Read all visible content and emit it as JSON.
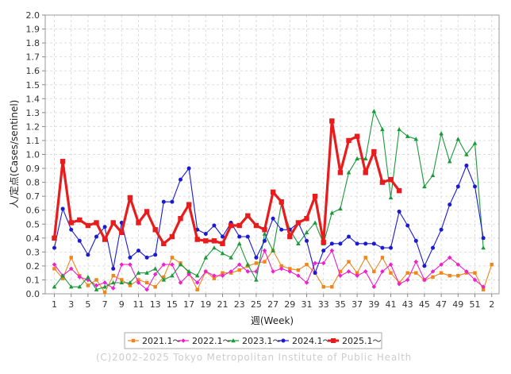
{
  "chart_data": {
    "type": "line",
    "xlabel": "週(Week)",
    "ylabel": "人/定点(Cases/sentinel)",
    "ylim": [
      0,
      2.0
    ],
    "y_ticks": [
      "0.0",
      "0.1",
      "0.2",
      "0.3",
      "0.4",
      "0.5",
      "0.6",
      "0.7",
      "0.8",
      "0.9",
      "1.0",
      "1.1",
      "1.2",
      "1.3",
      "1.4",
      "1.5",
      "1.6",
      "1.7",
      "1.8",
      "1.9",
      "2.0"
    ],
    "x_ticks": [
      "1",
      "3",
      "5",
      "7",
      "9",
      "11",
      "13",
      "15",
      "17",
      "19",
      "21",
      "23",
      "25",
      "27",
      "29",
      "31",
      "33",
      "35",
      "37",
      "39",
      "41",
      "43",
      "45",
      "47",
      "49",
      "51",
      "2"
    ],
    "grid": true,
    "legend_position": "bottom",
    "copyright": "(C)2002-2025 Tokyo Metropolitan Institute of Public Health",
    "series": [
      {
        "name": "2021.1～",
        "color": "#f0851a",
        "marker": "square",
        "values": [
          0.18,
          0.11,
          0.26,
          0.13,
          0.06,
          0.1,
          0.01,
          0.13,
          0.1,
          0.06,
          0.1,
          0.08,
          0.05,
          0.12,
          0.26,
          0.22,
          0.15,
          0.03,
          0.16,
          0.11,
          0.15,
          0.15,
          0.17,
          0.2,
          0.22,
          0.23,
          0.31,
          0.2,
          0.18,
          0.17,
          0.21,
          0.15,
          0.05,
          0.05,
          0.16,
          0.23,
          0.15,
          0.26,
          0.16,
          0.26,
          0.15,
          0.08,
          0.15,
          0.15,
          0.1,
          0.12,
          0.15,
          0.13,
          0.13,
          0.15,
          0.15,
          0.03,
          0.21
        ]
      },
      {
        "name": "2022.1～",
        "color": "#ee22cc",
        "marker": "diamond",
        "values": [
          0.21,
          0.13,
          0.18,
          0.12,
          0.1,
          0.06,
          0.08,
          0.04,
          0.21,
          0.21,
          0.08,
          0.03,
          0.14,
          0.21,
          0.21,
          0.08,
          0.14,
          0.08,
          0.16,
          0.13,
          0.13,
          0.16,
          0.21,
          0.16,
          0.16,
          0.31,
          0.16,
          0.18,
          0.16,
          0.13,
          0.08,
          0.22,
          0.22,
          0.31,
          0.13,
          0.16,
          0.13,
          0.16,
          0.05,
          0.16,
          0.21,
          0.07,
          0.1,
          0.23,
          0.1,
          0.16,
          0.21,
          0.26,
          0.21,
          0.16,
          0.1,
          0.05
        ]
      },
      {
        "name": "2023.1～",
        "color": "#1a9a3a",
        "marker": "triangle",
        "values": [
          0.05,
          0.13,
          0.05,
          0.05,
          0.12,
          0.03,
          0.05,
          0.08,
          0.08,
          0.08,
          0.15,
          0.15,
          0.18,
          0.1,
          0.13,
          0.21,
          0.16,
          0.13,
          0.26,
          0.33,
          0.29,
          0.26,
          0.36,
          0.21,
          0.1,
          0.43,
          0.31,
          0.65,
          0.46,
          0.36,
          0.44,
          0.51,
          0.36,
          0.58,
          0.61,
          0.87,
          0.97,
          0.97,
          1.31,
          1.18,
          0.69,
          1.18,
          1.13,
          1.11,
          0.77,
          0.85,
          1.15,
          0.95,
          1.11,
          1.0,
          1.08,
          0.33
        ]
      },
      {
        "name": "2024.1～",
        "color": "#1a1ad2",
        "marker": "circle",
        "values": [
          0.33,
          0.61,
          0.46,
          0.38,
          0.28,
          0.41,
          0.48,
          0.18,
          0.51,
          0.26,
          0.31,
          0.26,
          0.28,
          0.66,
          0.66,
          0.82,
          0.9,
          0.46,
          0.43,
          0.49,
          0.41,
          0.51,
          0.41,
          0.41,
          0.26,
          0.38,
          0.54,
          0.46,
          0.46,
          0.51,
          0.38,
          0.15,
          0.31,
          0.36,
          0.36,
          0.41,
          0.36,
          0.36,
          0.36,
          0.33,
          0.33,
          0.59,
          0.49,
          0.38,
          0.2,
          0.33,
          0.46,
          0.64,
          0.77,
          0.92,
          0.77,
          0.4
        ]
      },
      {
        "name": "2025.1～",
        "color": "#e81c1c",
        "marker": "square",
        "values": [
          0.4,
          0.95,
          0.51,
          0.53,
          0.49,
          0.51,
          0.39,
          0.51,
          0.44,
          0.69,
          0.51,
          0.59,
          0.46,
          0.36,
          0.41,
          0.54,
          0.64,
          0.39,
          0.38,
          0.38,
          0.36,
          0.49,
          0.49,
          0.56,
          0.49,
          0.46,
          0.73,
          0.66,
          0.41,
          0.51,
          0.54,
          0.7,
          0.37,
          1.24,
          0.87,
          1.1,
          1.13,
          0.87,
          1.02,
          0.8,
          0.82,
          0.74
        ]
      }
    ]
  }
}
